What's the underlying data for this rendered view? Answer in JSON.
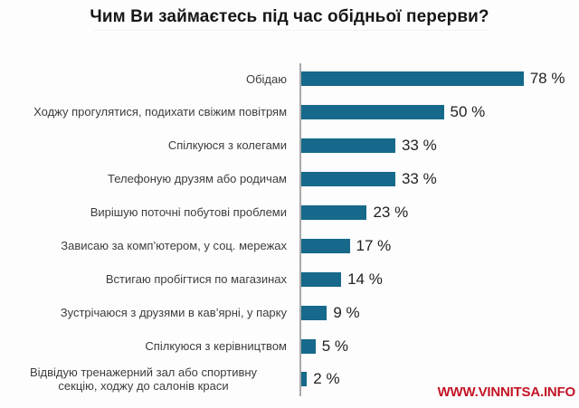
{
  "title": "Чим Ви займаєтесь під час обідньої перерви?",
  "footer": {
    "watermark": "WWW.VINNITSA.INFO"
  },
  "colors": {
    "bar": "#16698a",
    "axis": "#a9a9a9",
    "title_text": "#161616",
    "category_text": "#3d3d3d",
    "value_text": "#222222",
    "watermark_red": "#c41425",
    "background": "#fdfdfd"
  },
  "chart_data": {
    "type": "bar",
    "orientation": "horizontal",
    "title": "Чим Ви займаєтесь під час обідньої перерви?",
    "categories": [
      "Обідаю",
      "Ходжу прогулятися, подихати свіжим повітрям",
      "Спілкуюся з колегами",
      "Телефоную друзям або родичам",
      "Вирішую поточні побутові проблеми",
      "Зависаю за комп’ютером, у соц. мережах",
      "Встигаю пробігтися по магазинах",
      "Зустрічаюся з друзями в кав’ярні, у парку",
      "Спілкуюся з керівництвом",
      "Відвідую тренажерний зал або спортивну\nсекцію, ходжу до салонів краси"
    ],
    "values": [
      78,
      50,
      33,
      33,
      23,
      17,
      14,
      9,
      5,
      2
    ],
    "value_labels": [
      "78 %",
      "50 %",
      "33 %",
      "33 %",
      "23 %",
      "17 %",
      "14 %",
      "9 %",
      "5 %",
      "2 %"
    ],
    "unit": "%",
    "xlabel": "",
    "ylabel": "",
    "xlim": [
      0,
      85
    ],
    "grid": false,
    "legend": false,
    "data_labels": "outside-end"
  }
}
